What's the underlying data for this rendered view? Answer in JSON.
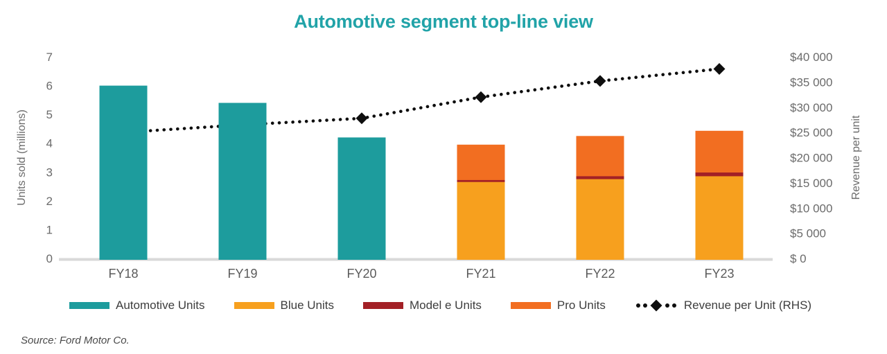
{
  "title": "Automotive segment top-line view",
  "source": "Source: Ford Motor Co.",
  "colors": {
    "teal": "#1D9C9D",
    "amber": "#F7A01E",
    "dark_red": "#A32026",
    "orange": "#F26E21",
    "line_black": "#0E0E0E",
    "axis_gray": "#D9D9D9",
    "title_teal": "#21A3A8"
  },
  "chart_data": {
    "type": "bar",
    "subtype": "stacked-bars-with-line-combo",
    "categories": [
      "FY18",
      "FY19",
      "FY20",
      "FY21",
      "FY22",
      "FY23"
    ],
    "series": [
      {
        "name": "Automotive Units",
        "axis": "left",
        "color": "#1D9C9D",
        "values": [
          6.0,
          5.4,
          4.2,
          0,
          0,
          0
        ]
      },
      {
        "name": "Blue Units",
        "axis": "left",
        "color": "#F7A01E",
        "values": [
          0,
          0,
          0,
          2.7,
          2.8,
          2.9
        ]
      },
      {
        "name": "Model e Units",
        "axis": "left",
        "color": "#A32026",
        "values": [
          0,
          0,
          0,
          0.07,
          0.1,
          0.13
        ]
      },
      {
        "name": "Pro Units",
        "axis": "left",
        "color": "#F26E21",
        "values": [
          0,
          0,
          0,
          1.18,
          1.35,
          1.4
        ]
      }
    ],
    "line_series": {
      "name": "Revenue per Unit (RHS)",
      "axis": "right",
      "color": "#0E0E0E",
      "style": "dotted-with-diamond-markers",
      "values": [
        25000,
        26500,
        27800,
        32000,
        35200,
        37600
      ]
    },
    "left_axis": {
      "label": "Units sold (millions)",
      "min": 0,
      "max": 7,
      "step": 1,
      "tick_labels": [
        "0",
        "1",
        "2",
        "3",
        "4",
        "5",
        "6",
        "7"
      ]
    },
    "right_axis": {
      "label": "Revenue per unit",
      "min": 0,
      "max": 40000,
      "step": 5000,
      "tick_labels": [
        "$ 0",
        "$5 000",
        "$10 000",
        "$15 000",
        "$20 000",
        "$25 000",
        "$30 000",
        "$35 000",
        "$40 000"
      ]
    },
    "grid": "off",
    "legend_position": "bottom"
  },
  "legend": {
    "items": [
      {
        "label": "Automotive Units",
        "type": "swatch",
        "color": "#1D9C9D"
      },
      {
        "label": "Blue Units",
        "type": "swatch",
        "color": "#F7A01E"
      },
      {
        "label": "Model e Units",
        "type": "swatch",
        "color": "#A32026"
      },
      {
        "label": "Pro Units",
        "type": "swatch",
        "color": "#F26E21"
      },
      {
        "label": "Revenue per Unit (RHS)",
        "type": "dotted",
        "color": "#0E0E0E"
      }
    ]
  }
}
